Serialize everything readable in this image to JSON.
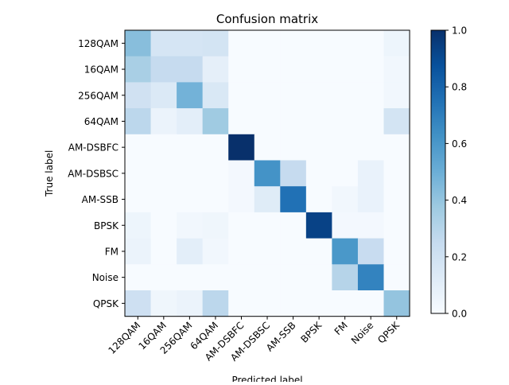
{
  "chart_data": {
    "type": "heatmap",
    "title": "Confusion matrix",
    "xlabel": "Predicted label",
    "ylabel": "True label",
    "x_categories": [
      "128QAM",
      "16QAM",
      "256QAM",
      "64QAM",
      "AM-DSBFC",
      "AM-DSBSC",
      "AM-SSB",
      "BPSK",
      "FM",
      "Noise",
      "QPSK"
    ],
    "y_categories": [
      "128QAM",
      "16QAM",
      "256QAM",
      "64QAM",
      "AM-DSBFC",
      "AM-DSBSC",
      "AM-SSB",
      "BPSK",
      "FM",
      "Noise",
      "QPSK"
    ],
    "values": [
      [
        0.43,
        0.17,
        0.17,
        0.18,
        0.0,
        0.0,
        0.0,
        0.0,
        0.0,
        0.0,
        0.05
      ],
      [
        0.34,
        0.25,
        0.25,
        0.09,
        0.0,
        0.0,
        0.0,
        0.0,
        0.0,
        0.0,
        0.03
      ],
      [
        0.2,
        0.14,
        0.48,
        0.15,
        0.0,
        0.0,
        0.0,
        0.0,
        0.0,
        0.0,
        0.03
      ],
      [
        0.28,
        0.06,
        0.1,
        0.37,
        0.0,
        0.0,
        0.0,
        0.0,
        0.0,
        0.0,
        0.18
      ],
      [
        0.0,
        0.0,
        0.0,
        0.0,
        1.0,
        0.0,
        0.0,
        0.0,
        0.0,
        0.0,
        0.0
      ],
      [
        0.0,
        0.0,
        0.0,
        0.0,
        0.02,
        0.62,
        0.25,
        0.0,
        0.0,
        0.07,
        0.0
      ],
      [
        0.0,
        0.0,
        0.0,
        0.0,
        0.02,
        0.12,
        0.75,
        0.0,
        0.03,
        0.07,
        0.0
      ],
      [
        0.05,
        0.0,
        0.03,
        0.04,
        0.0,
        0.0,
        0.0,
        0.93,
        0.02,
        0.02,
        0.0
      ],
      [
        0.06,
        0.0,
        0.1,
        0.03,
        0.0,
        0.0,
        0.0,
        0.0,
        0.6,
        0.24,
        0.0
      ],
      [
        0.0,
        0.0,
        0.0,
        0.0,
        0.0,
        0.0,
        0.0,
        0.0,
        0.3,
        0.68,
        0.0
      ],
      [
        0.21,
        0.04,
        0.06,
        0.28,
        0.0,
        0.0,
        0.0,
        0.0,
        0.0,
        0.0,
        0.4
      ]
    ],
    "color_scale": "Blues",
    "vmin": 0.0,
    "vmax": 1.0,
    "colorbar_ticks": [
      "0.0",
      "0.2",
      "0.4",
      "0.6",
      "0.8",
      "1.0"
    ],
    "colorbar_tick_values": [
      0.0,
      0.2,
      0.4,
      0.6,
      0.8,
      1.0
    ]
  }
}
